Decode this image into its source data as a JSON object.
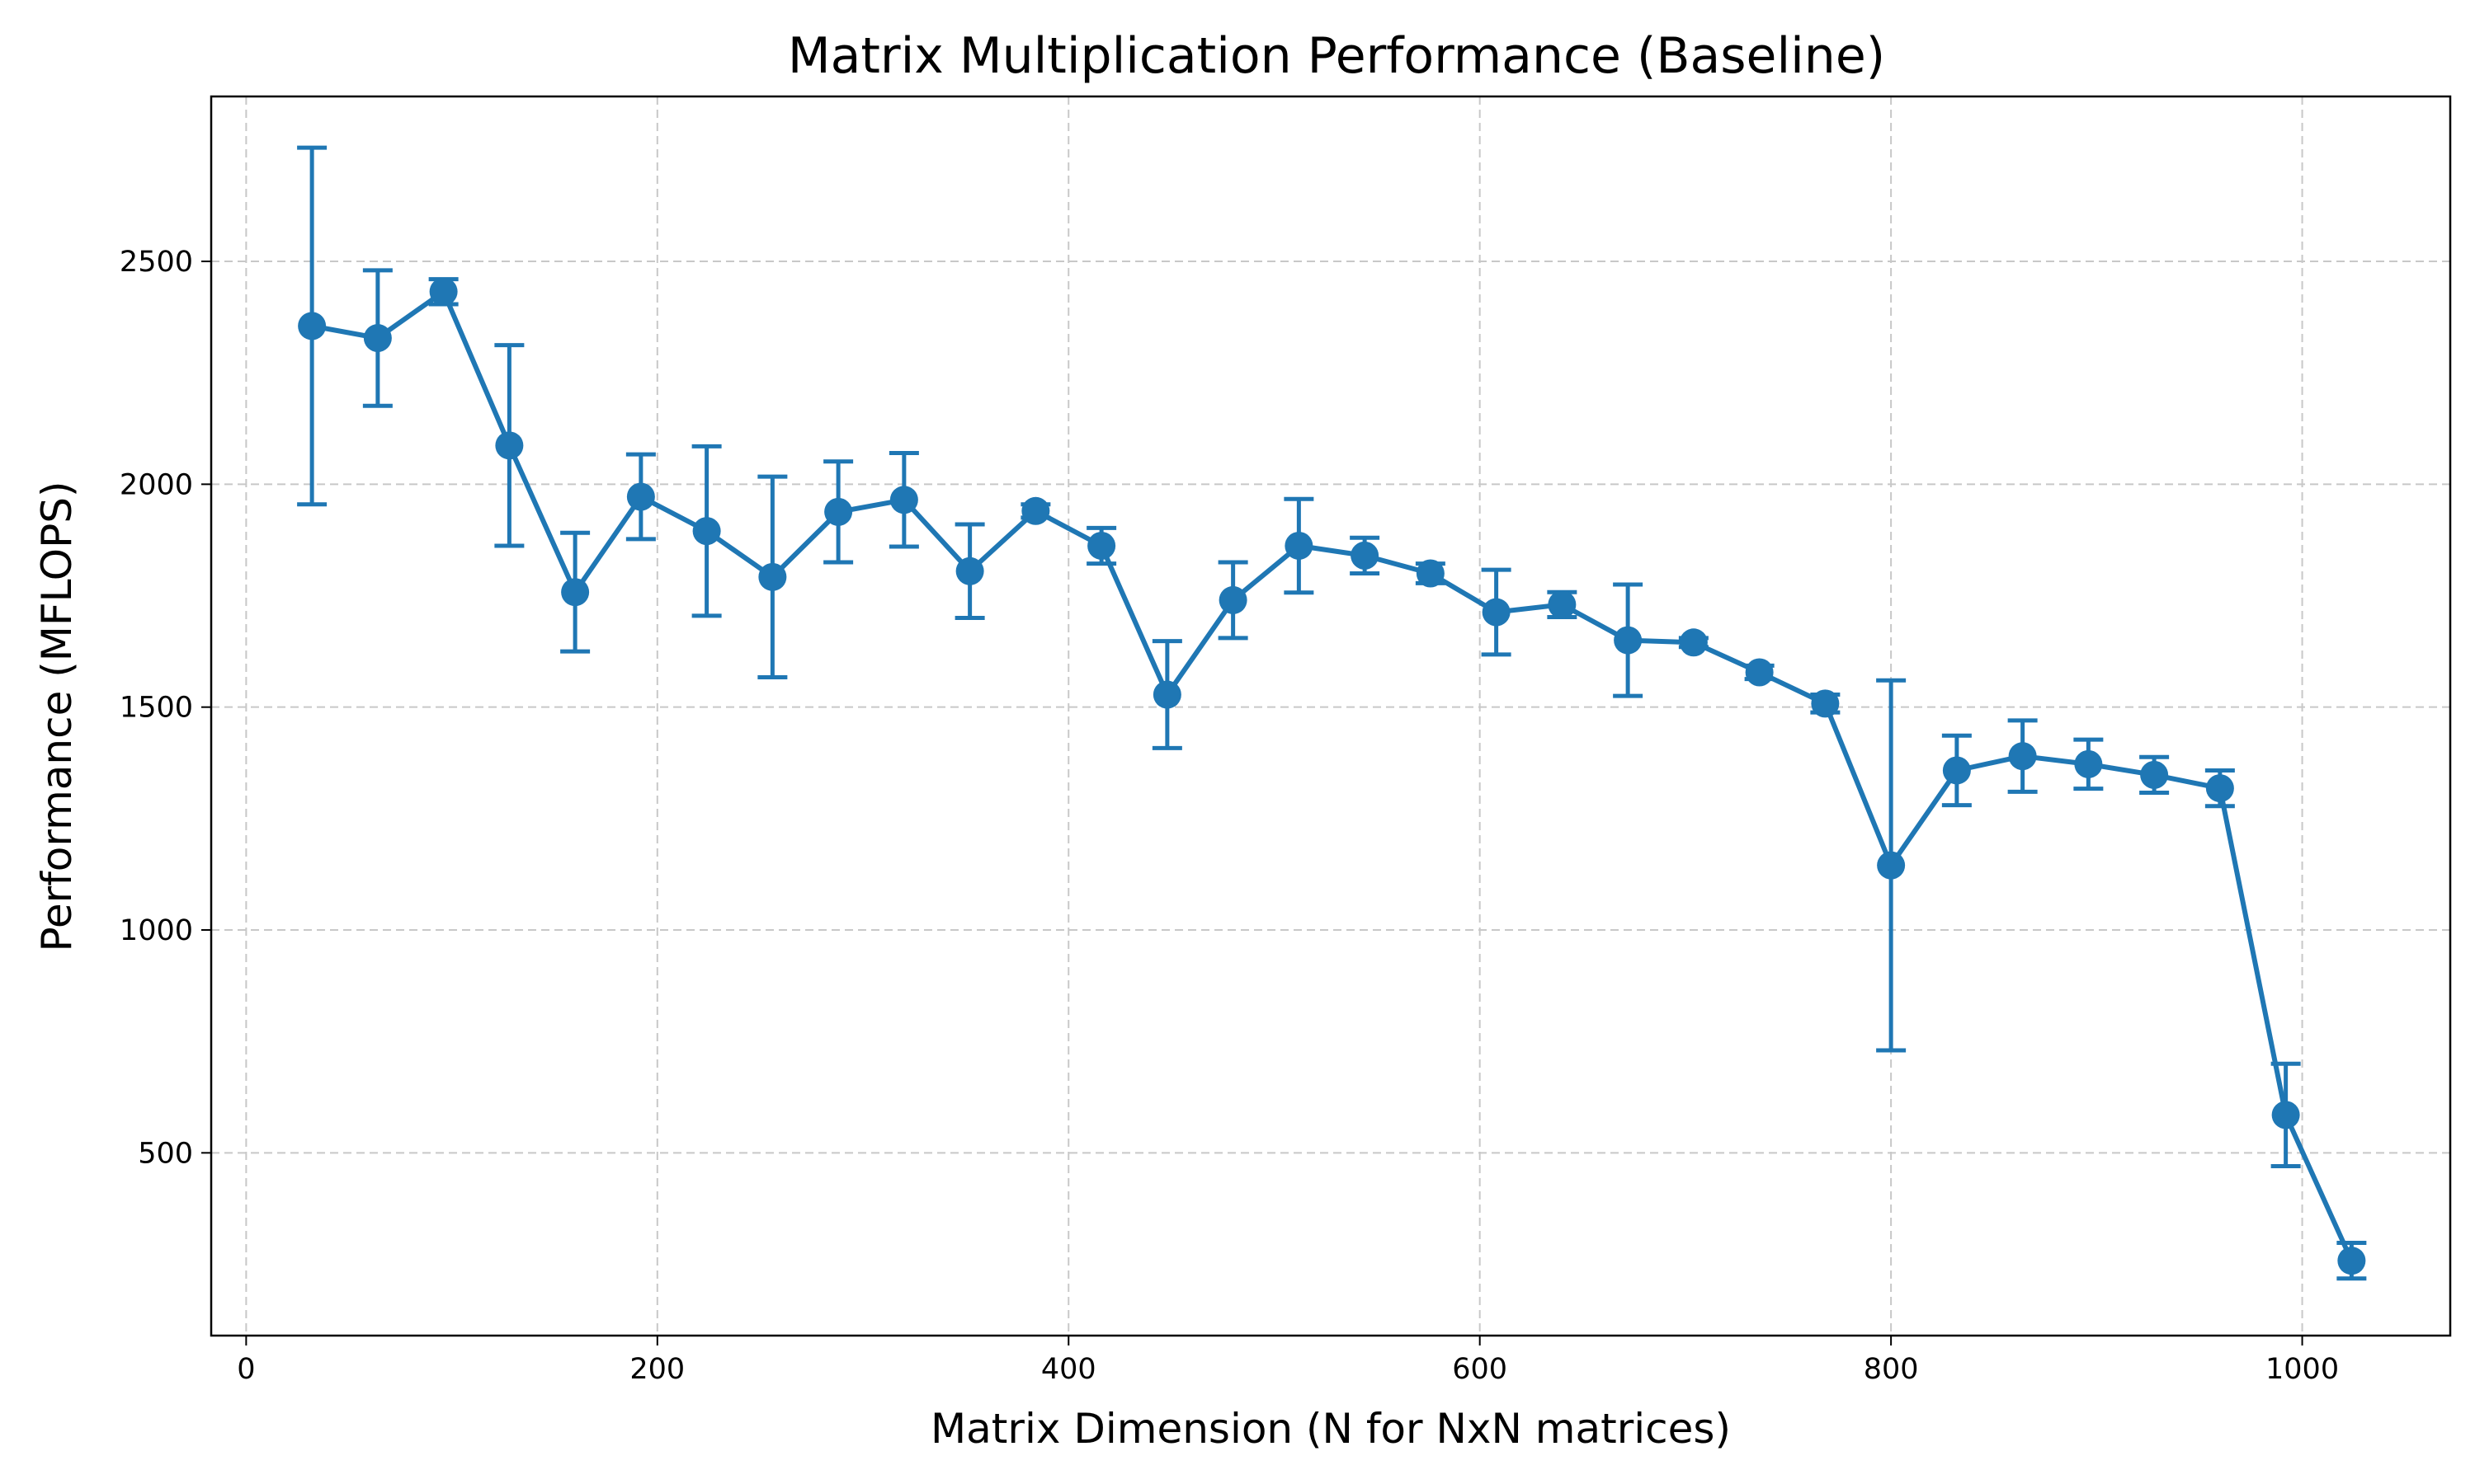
{
  "chart_data": {
    "type": "line",
    "title": "Matrix Multiplication Performance (Baseline)",
    "xlabel": "Matrix Dimension (N for NxN matrices)",
    "ylabel": "Performance (MFLOPS)",
    "xlim": [
      -17,
      1072
    ],
    "ylim": [
      90,
      2870
    ],
    "x_ticks": [
      0,
      200,
      400,
      600,
      800,
      1000
    ],
    "y_ticks": [
      500,
      1000,
      1500,
      2000,
      2500
    ],
    "grid": true,
    "color": "#1f77b4",
    "series": [
      {
        "x": [
          32,
          64,
          96,
          128,
          160,
          192,
          224,
          256,
          288,
          320,
          352,
          384,
          416,
          448,
          480,
          512,
          544,
          576,
          608,
          640,
          672,
          704,
          736,
          768,
          800,
          832,
          864,
          896,
          928,
          960,
          992,
          1024
        ],
        "values": [
          2355,
          2328,
          2432,
          2087,
          1758,
          1972,
          1895,
          1792,
          1938,
          1965,
          1805,
          1940,
          1862,
          1528,
          1740,
          1862,
          1840,
          1800,
          1713,
          1730,
          1650,
          1645,
          1578,
          1508,
          1145,
          1358,
          1390,
          1372,
          1348,
          1318,
          585,
          258
        ],
        "err": [
          400,
          152,
          28,
          225,
          133,
          95,
          190,
          225,
          113,
          105,
          105,
          15,
          40,
          120,
          85,
          105,
          40,
          22,
          95,
          28,
          125,
          10,
          15,
          20,
          415,
          78,
          80,
          55,
          40,
          40,
          115,
          40
        ]
      }
    ]
  }
}
